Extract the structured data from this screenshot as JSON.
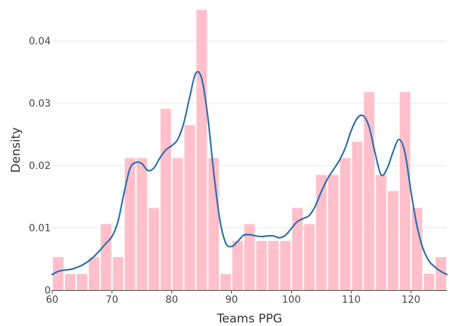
{
  "chart_data": {
    "type": "bar",
    "xlabel": "Teams PPG",
    "ylabel": "Density",
    "xlim": [
      60,
      126
    ],
    "ylim": [
      0,
      0.045
    ],
    "x_ticks": [
      60,
      70,
      80,
      90,
      100,
      110,
      120
    ],
    "y_ticks": [
      0,
      0.01,
      0.02,
      0.03,
      0.04
    ],
    "y_tick_labels": [
      "0",
      "0.01",
      "0.02",
      "0.03",
      "0.04"
    ],
    "grid": true,
    "bins": {
      "start": 60,
      "width": 2,
      "values": [
        0.0053,
        0.0026,
        0.0026,
        0.0053,
        0.0106,
        0.0053,
        0.0212,
        0.0212,
        0.0132,
        0.0291,
        0.0212,
        0.0265,
        0.045,
        0.0212,
        0.0026,
        0.0079,
        0.0106,
        0.0079,
        0.0079,
        0.0079,
        0.0132,
        0.0106,
        0.0185,
        0.0185,
        0.0212,
        0.0238,
        0.0318,
        0.0185,
        0.0159,
        0.0318,
        0.0132,
        0.0026,
        0.0053
      ],
      "color": "#FFC0CB"
    },
    "density_curve": {
      "color": "#2A6DA8",
      "points": [
        [
          60,
          0.0025
        ],
        [
          61,
          0.003
        ],
        [
          62,
          0.0032
        ],
        [
          63,
          0.0033
        ],
        [
          64,
          0.0036
        ],
        [
          65,
          0.004
        ],
        [
          66,
          0.0046
        ],
        [
          67,
          0.0054
        ],
        [
          68,
          0.0064
        ],
        [
          69,
          0.0075
        ],
        [
          70,
          0.0086
        ],
        [
          71,
          0.011
        ],
        [
          72,
          0.0155
        ],
        [
          73,
          0.0195
        ],
        [
          74,
          0.0205
        ],
        [
          75,
          0.0203
        ],
        [
          76,
          0.0192
        ],
        [
          77,
          0.0196
        ],
        [
          78,
          0.0212
        ],
        [
          79,
          0.0225
        ],
        [
          80,
          0.0232
        ],
        [
          81,
          0.0242
        ],
        [
          82,
          0.0268
        ],
        [
          83,
          0.031
        ],
        [
          84,
          0.0348
        ],
        [
          85,
          0.034
        ],
        [
          86,
          0.028
        ],
        [
          87,
          0.019
        ],
        [
          88,
          0.0115
        ],
        [
          89,
          0.0076
        ],
        [
          90,
          0.007
        ],
        [
          91,
          0.0078
        ],
        [
          92,
          0.0088
        ],
        [
          93,
          0.0089
        ],
        [
          94,
          0.0087
        ],
        [
          95,
          0.0086
        ],
        [
          96,
          0.0087
        ],
        [
          97,
          0.0087
        ],
        [
          98,
          0.0084
        ],
        [
          99,
          0.0088
        ],
        [
          100,
          0.0099
        ],
        [
          101,
          0.011
        ],
        [
          102,
          0.0115
        ],
        [
          103,
          0.012
        ],
        [
          104,
          0.0135
        ],
        [
          105,
          0.0158
        ],
        [
          106,
          0.0178
        ],
        [
          107,
          0.0193
        ],
        [
          108,
          0.0208
        ],
        [
          109,
          0.0228
        ],
        [
          110,
          0.0256
        ],
        [
          111,
          0.0276
        ],
        [
          112,
          0.028
        ],
        [
          113,
          0.0262
        ],
        [
          114,
          0.022
        ],
        [
          115,
          0.0185
        ],
        [
          116,
          0.0195
        ],
        [
          117,
          0.0222
        ],
        [
          118,
          0.0242
        ],
        [
          119,
          0.022
        ],
        [
          120,
          0.0158
        ],
        [
          121,
          0.0103
        ],
        [
          122,
          0.0067
        ],
        [
          123,
          0.0047
        ],
        [
          124,
          0.0037
        ],
        [
          125,
          0.003
        ],
        [
          126,
          0.0025
        ]
      ]
    }
  }
}
